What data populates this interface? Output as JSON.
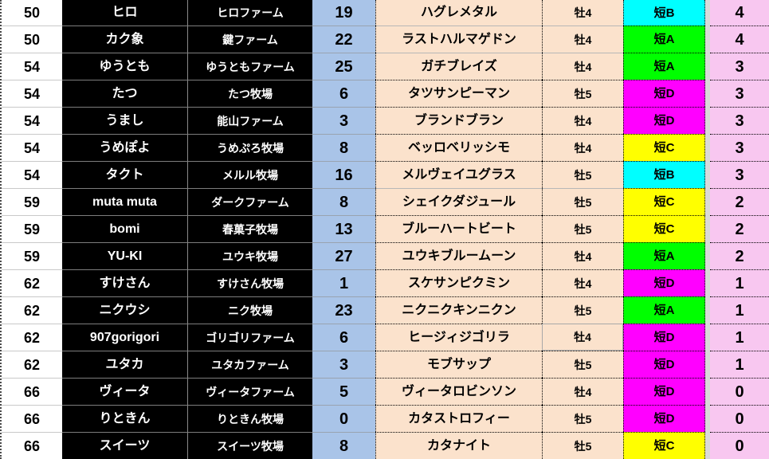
{
  "colors": {
    "count_bg": "#a9c4e8",
    "name_bg": "#fbe2cc",
    "wins_bg": "#f8c7f0",
    "owner_bg": "#000000",
    "grade": {
      "cyan": "#00ffff",
      "green": "#00ff00",
      "magenta": "#ff00ff",
      "yellow": "#ffff00"
    }
  },
  "table": {
    "columns": [
      "rank",
      "owner",
      "farm",
      "count",
      "horse",
      "sex_age",
      "grade",
      "wins"
    ],
    "rows": [
      {
        "rank": "50",
        "owner": "ヒロ",
        "farm": "ヒロファーム",
        "count": "19",
        "horse": "ハグレメタル",
        "sex_age": "牡4",
        "grade": "短B",
        "grade_color": "cyan",
        "wins": "4"
      },
      {
        "rank": "50",
        "owner": "カク象",
        "farm": "鍵ファーム",
        "count": "22",
        "horse": "ラストハルマゲドン",
        "sex_age": "牡4",
        "grade": "短A",
        "grade_color": "green",
        "wins": "4"
      },
      {
        "rank": "54",
        "owner": "ゆうとも",
        "farm": "ゆうともファーム",
        "count": "25",
        "horse": "ガチブレイズ",
        "sex_age": "牡4",
        "grade": "短A",
        "grade_color": "green",
        "wins": "3"
      },
      {
        "rank": "54",
        "owner": "たつ",
        "farm": "たつ牧場",
        "count": "6",
        "horse": "タツサンピーマン",
        "sex_age": "牡5",
        "grade": "短D",
        "grade_color": "magenta",
        "wins": "3"
      },
      {
        "rank": "54",
        "owner": "うまし",
        "farm": "能山ファーム",
        "count": "3",
        "horse": "ブランドブラン",
        "sex_age": "牡4",
        "grade": "短D",
        "grade_color": "magenta",
        "wins": "3"
      },
      {
        "rank": "54",
        "owner": "うめぽよ",
        "farm": "うめぷろ牧場",
        "count": "8",
        "horse": "ベッロベリッシモ",
        "sex_age": "牡4",
        "grade": "短C",
        "grade_color": "yellow",
        "wins": "3"
      },
      {
        "rank": "54",
        "owner": "タクト",
        "farm": "メルル牧場",
        "count": "16",
        "horse": "メルヴェイユグラス",
        "sex_age": "牡5",
        "grade": "短B",
        "grade_color": "cyan",
        "wins": "3"
      },
      {
        "rank": "59",
        "owner": "muta muta",
        "farm": "ダークファーム",
        "count": "8",
        "horse": "シェイクダジュール",
        "sex_age": "牡5",
        "grade": "短C",
        "grade_color": "yellow",
        "wins": "2"
      },
      {
        "rank": "59",
        "owner": "bomi",
        "farm": "春菓子牧場",
        "count": "13",
        "horse": "ブルーハートビート",
        "sex_age": "牡5",
        "grade": "短C",
        "grade_color": "yellow",
        "wins": "2"
      },
      {
        "rank": "59",
        "owner": "YU-KI",
        "farm": "ユウキ牧場",
        "count": "27",
        "horse": "ユウキブルームーン",
        "sex_age": "牡4",
        "grade": "短A",
        "grade_color": "green",
        "wins": "2"
      },
      {
        "rank": "62",
        "owner": "すけさん",
        "farm": "すけさん牧場",
        "count": "1",
        "horse": "スケサンピクミン",
        "sex_age": "牡4",
        "grade": "短D",
        "grade_color": "magenta",
        "wins": "1"
      },
      {
        "rank": "62",
        "owner": "ニクウシ",
        "farm": "ニク牧場",
        "count": "23",
        "horse": "ニクニクキンニクン",
        "sex_age": "牡5",
        "grade": "短A",
        "grade_color": "green",
        "wins": "1"
      },
      {
        "rank": "62",
        "owner": "907gorigori",
        "farm": "ゴリゴリファーム",
        "count": "6",
        "horse": "ヒージィジゴリラ",
        "sex_age": "牡4",
        "grade": "短D",
        "grade_color": "magenta",
        "wins": "1"
      },
      {
        "rank": "62",
        "owner": "ユタカ",
        "farm": "ユタカファーム",
        "count": "3",
        "horse": "モブサップ",
        "sex_age": "牡5",
        "grade": "短D",
        "grade_color": "magenta",
        "wins": "1"
      },
      {
        "rank": "66",
        "owner": "ヴィータ",
        "farm": "ヴィータファーム",
        "count": "5",
        "horse": "ヴィータロビンソン",
        "sex_age": "牡4",
        "grade": "短D",
        "grade_color": "magenta",
        "wins": "0"
      },
      {
        "rank": "66",
        "owner": "りときん",
        "farm": "りときん牧場",
        "count": "0",
        "horse": "カタストロフィー",
        "sex_age": "牡5",
        "grade": "短D",
        "grade_color": "magenta",
        "wins": "0"
      },
      {
        "rank": "66",
        "owner": "スイーツ",
        "farm": "スイーツ牧場",
        "count": "8",
        "horse": "カタナイト",
        "sex_age": "牡5",
        "grade": "短C",
        "grade_color": "yellow",
        "wins": "0"
      }
    ]
  }
}
